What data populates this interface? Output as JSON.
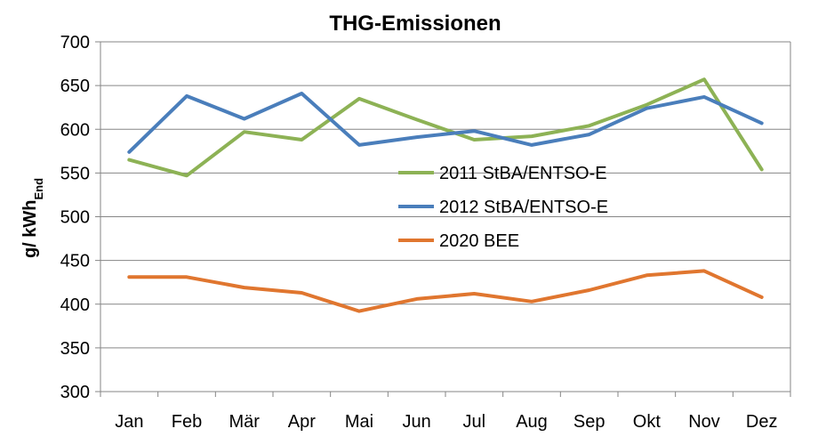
{
  "chart_data": {
    "type": "line",
    "title": "THG-Emissionen",
    "xlabel": "",
    "ylabel": {
      "main": "g/ kWh",
      "subscript": "End"
    },
    "ylim": [
      300,
      700
    ],
    "yticks": [
      "300",
      "350",
      "400",
      "450",
      "500",
      "550",
      "600",
      "650",
      "700"
    ],
    "grid": true,
    "legend_position": "center",
    "categories": [
      "Jan",
      "Feb",
      "Mär",
      "Apr",
      "Mai",
      "Jun",
      "Jul",
      "Aug",
      "Sep",
      "Okt",
      "Nov",
      "Dez"
    ],
    "series": [
      {
        "name": "2011 StBA/ENTSO-E",
        "color": "#8db255",
        "values": [
          565,
          547,
          597,
          588,
          635,
          611,
          588,
          592,
          604,
          628,
          657,
          554
        ]
      },
      {
        "name": "2012 StBA/ENTSO-E",
        "color": "#4a7ebb",
        "values": [
          574,
          638,
          612,
          641,
          582,
          591,
          598,
          582,
          594,
          624,
          637,
          607
        ]
      },
      {
        "name": "2020 BEE",
        "color": "#e0762f",
        "values": [
          431,
          431,
          419,
          413,
          392,
          406,
          412,
          403,
          416,
          433,
          438,
          408
        ]
      }
    ]
  }
}
